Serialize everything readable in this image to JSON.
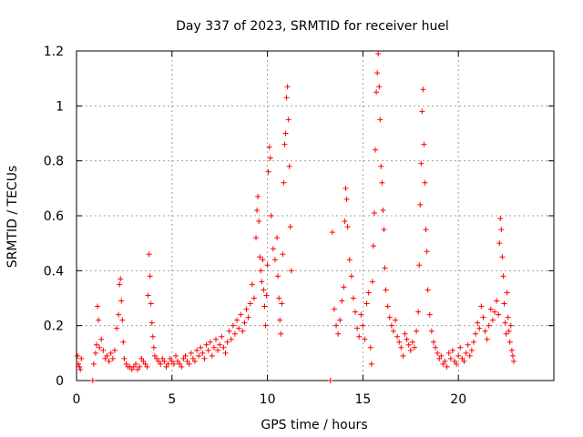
{
  "chart_data": {
    "type": "scatter",
    "title": "Day 337 of 2023, SRMTID for receiver huel",
    "xlabel": "GPS time / hours",
    "ylabel": "SRMTID / TECUs",
    "xlim": [
      0,
      25
    ],
    "ylim": [
      0,
      1.2
    ],
    "x_ticks": [
      0,
      5,
      10,
      15,
      20
    ],
    "x_tick_labels": [
      "0",
      "5",
      "10",
      "15",
      "20"
    ],
    "y_ticks": [
      0,
      0.2,
      0.4,
      0.6,
      0.8,
      1.0,
      1.2
    ],
    "y_tick_labels": [
      "0",
      "0.2",
      "0.4",
      "0.6",
      "0.8",
      "1",
      "1.2"
    ],
    "grid": true,
    "marker": "plus",
    "series_color": "#ff0000",
    "series": [
      {
        "name": "SRMTID",
        "points": [
          [
            0.05,
            0.09
          ],
          [
            0.1,
            0.06
          ],
          [
            0.15,
            0.05
          ],
          [
            0.2,
            0.04
          ],
          [
            0.25,
            0.08
          ],
          [
            0.85,
            0.0
          ],
          [
            0.9,
            0.06
          ],
          [
            1.0,
            0.1
          ],
          [
            1.05,
            0.13
          ],
          [
            1.1,
            0.27
          ],
          [
            1.15,
            0.22
          ],
          [
            1.2,
            0.12
          ],
          [
            1.3,
            0.15
          ],
          [
            1.4,
            0.11
          ],
          [
            1.5,
            0.08
          ],
          [
            1.6,
            0.09
          ],
          [
            1.7,
            0.07
          ],
          [
            1.8,
            0.1
          ],
          [
            1.9,
            0.08
          ],
          [
            2.0,
            0.11
          ],
          [
            2.1,
            0.19
          ],
          [
            2.2,
            0.24
          ],
          [
            2.25,
            0.35
          ],
          [
            2.3,
            0.37
          ],
          [
            2.35,
            0.29
          ],
          [
            2.4,
            0.22
          ],
          [
            2.45,
            0.14
          ],
          [
            2.5,
            0.08
          ],
          [
            2.6,
            0.06
          ],
          [
            2.7,
            0.05
          ],
          [
            2.8,
            0.05
          ],
          [
            2.9,
            0.04
          ],
          [
            3.0,
            0.05
          ],
          [
            3.1,
            0.06
          ],
          [
            3.2,
            0.04
          ],
          [
            3.3,
            0.05
          ],
          [
            3.4,
            0.08
          ],
          [
            3.5,
            0.07
          ],
          [
            3.6,
            0.06
          ],
          [
            3.7,
            0.05
          ],
          [
            3.75,
            0.31
          ],
          [
            3.8,
            0.46
          ],
          [
            3.85,
            0.38
          ],
          [
            3.9,
            0.28
          ],
          [
            3.95,
            0.21
          ],
          [
            4.0,
            0.16
          ],
          [
            4.05,
            0.12
          ],
          [
            4.1,
            0.09
          ],
          [
            4.2,
            0.08
          ],
          [
            4.3,
            0.07
          ],
          [
            4.4,
            0.06
          ],
          [
            4.5,
            0.08
          ],
          [
            4.6,
            0.07
          ],
          [
            4.7,
            0.05
          ],
          [
            4.8,
            0.06
          ],
          [
            4.9,
            0.08
          ],
          [
            5.0,
            0.07
          ],
          [
            5.1,
            0.06
          ],
          [
            5.2,
            0.09
          ],
          [
            5.3,
            0.07
          ],
          [
            5.4,
            0.06
          ],
          [
            5.5,
            0.05
          ],
          [
            5.6,
            0.08
          ],
          [
            5.7,
            0.09
          ],
          [
            5.8,
            0.07
          ],
          [
            5.9,
            0.06
          ],
          [
            6.0,
            0.1
          ],
          [
            6.1,
            0.08
          ],
          [
            6.2,
            0.07
          ],
          [
            6.3,
            0.11
          ],
          [
            6.4,
            0.09
          ],
          [
            6.5,
            0.12
          ],
          [
            6.6,
            0.1
          ],
          [
            6.7,
            0.08
          ],
          [
            6.8,
            0.13
          ],
          [
            6.9,
            0.11
          ],
          [
            7.0,
            0.14
          ],
          [
            7.1,
            0.09
          ],
          [
            7.2,
            0.12
          ],
          [
            7.3,
            0.15
          ],
          [
            7.4,
            0.11
          ],
          [
            7.5,
            0.13
          ],
          [
            7.6,
            0.16
          ],
          [
            7.7,
            0.12
          ],
          [
            7.8,
            0.1
          ],
          [
            7.9,
            0.14
          ],
          [
            8.0,
            0.18
          ],
          [
            8.1,
            0.15
          ],
          [
            8.2,
            0.2
          ],
          [
            8.3,
            0.17
          ],
          [
            8.4,
            0.22
          ],
          [
            8.5,
            0.19
          ],
          [
            8.6,
            0.24
          ],
          [
            8.7,
            0.18
          ],
          [
            8.8,
            0.21
          ],
          [
            8.9,
            0.26
          ],
          [
            9.0,
            0.23
          ],
          [
            9.1,
            0.28
          ],
          [
            9.2,
            0.35
          ],
          [
            9.3,
            0.3
          ],
          [
            9.4,
            0.52
          ],
          [
            9.45,
            0.62
          ],
          [
            9.5,
            0.67
          ],
          [
            9.55,
            0.58
          ],
          [
            9.6,
            0.45
          ],
          [
            9.65,
            0.4
          ],
          [
            9.7,
            0.36
          ],
          [
            9.75,
            0.44
          ],
          [
            9.8,
            0.33
          ],
          [
            9.85,
            0.27
          ],
          [
            9.9,
            0.2
          ],
          [
            9.95,
            0.31
          ],
          [
            10.0,
            0.42
          ],
          [
            10.05,
            0.76
          ],
          [
            10.1,
            0.85
          ],
          [
            10.15,
            0.81
          ],
          [
            10.2,
            0.6
          ],
          [
            10.3,
            0.48
          ],
          [
            10.4,
            0.44
          ],
          [
            10.5,
            0.52
          ],
          [
            10.55,
            0.38
          ],
          [
            10.6,
            0.3
          ],
          [
            10.65,
            0.22
          ],
          [
            10.7,
            0.17
          ],
          [
            10.75,
            0.28
          ],
          [
            10.8,
            0.46
          ],
          [
            10.85,
            0.72
          ],
          [
            10.9,
            0.86
          ],
          [
            10.95,
            0.9
          ],
          [
            11.0,
            1.03
          ],
          [
            11.05,
            1.07
          ],
          [
            11.1,
            0.95
          ],
          [
            11.15,
            0.78
          ],
          [
            11.2,
            0.56
          ],
          [
            11.25,
            0.4
          ],
          [
            13.3,
            0.0
          ],
          [
            13.4,
            0.54
          ],
          [
            13.5,
            0.26
          ],
          [
            13.6,
            0.2
          ],
          [
            13.7,
            0.17
          ],
          [
            13.8,
            0.22
          ],
          [
            13.9,
            0.29
          ],
          [
            14.0,
            0.34
          ],
          [
            14.05,
            0.58
          ],
          [
            14.1,
            0.7
          ],
          [
            14.15,
            0.66
          ],
          [
            14.2,
            0.56
          ],
          [
            14.3,
            0.44
          ],
          [
            14.4,
            0.38
          ],
          [
            14.5,
            0.3
          ],
          [
            14.6,
            0.25
          ],
          [
            14.7,
            0.19
          ],
          [
            14.8,
            0.16
          ],
          [
            14.9,
            0.24
          ],
          [
            15.0,
            0.2
          ],
          [
            15.1,
            0.15
          ],
          [
            15.2,
            0.28
          ],
          [
            15.3,
            0.32
          ],
          [
            15.4,
            0.12
          ],
          [
            15.45,
            0.06
          ],
          [
            15.5,
            0.36
          ],
          [
            15.55,
            0.49
          ],
          [
            15.6,
            0.61
          ],
          [
            15.65,
            0.84
          ],
          [
            15.7,
            1.05
          ],
          [
            15.75,
            1.12
          ],
          [
            15.8,
            1.19
          ],
          [
            15.85,
            1.07
          ],
          [
            15.9,
            0.95
          ],
          [
            15.95,
            0.78
          ],
          [
            16.0,
            0.72
          ],
          [
            16.05,
            0.62
          ],
          [
            16.1,
            0.55
          ],
          [
            16.15,
            0.41
          ],
          [
            16.2,
            0.33
          ],
          [
            16.3,
            0.27
          ],
          [
            16.4,
            0.23
          ],
          [
            16.5,
            0.2
          ],
          [
            16.6,
            0.18
          ],
          [
            16.7,
            0.22
          ],
          [
            16.8,
            0.16
          ],
          [
            16.9,
            0.14
          ],
          [
            17.0,
            0.12
          ],
          [
            17.1,
            0.09
          ],
          [
            17.2,
            0.17
          ],
          [
            17.3,
            0.15
          ],
          [
            17.4,
            0.13
          ],
          [
            17.5,
            0.11
          ],
          [
            17.6,
            0.14
          ],
          [
            17.7,
            0.12
          ],
          [
            17.8,
            0.18
          ],
          [
            17.9,
            0.25
          ],
          [
            17.95,
            0.42
          ],
          [
            18.0,
            0.64
          ],
          [
            18.05,
            0.79
          ],
          [
            18.1,
            0.98
          ],
          [
            18.15,
            1.06
          ],
          [
            18.2,
            0.86
          ],
          [
            18.25,
            0.72
          ],
          [
            18.3,
            0.55
          ],
          [
            18.35,
            0.47
          ],
          [
            18.4,
            0.33
          ],
          [
            18.5,
            0.24
          ],
          [
            18.6,
            0.18
          ],
          [
            18.7,
            0.14
          ],
          [
            18.8,
            0.12
          ],
          [
            18.9,
            0.1
          ],
          [
            19.0,
            0.08
          ],
          [
            19.1,
            0.09
          ],
          [
            19.2,
            0.06
          ],
          [
            19.3,
            0.07
          ],
          [
            19.4,
            0.05
          ],
          [
            19.5,
            0.1
          ],
          [
            19.6,
            0.08
          ],
          [
            19.7,
            0.11
          ],
          [
            19.8,
            0.07
          ],
          [
            19.9,
            0.06
          ],
          [
            20.0,
            0.09
          ],
          [
            20.1,
            0.12
          ],
          [
            20.2,
            0.08
          ],
          [
            20.3,
            0.07
          ],
          [
            20.4,
            0.1
          ],
          [
            20.5,
            0.13
          ],
          [
            20.6,
            0.09
          ],
          [
            20.7,
            0.11
          ],
          [
            20.8,
            0.14
          ],
          [
            20.9,
            0.17
          ],
          [
            21.0,
            0.21
          ],
          [
            21.1,
            0.19
          ],
          [
            21.2,
            0.27
          ],
          [
            21.3,
            0.23
          ],
          [
            21.4,
            0.18
          ],
          [
            21.5,
            0.15
          ],
          [
            21.6,
            0.2
          ],
          [
            21.7,
            0.26
          ],
          [
            21.8,
            0.22
          ],
          [
            21.9,
            0.25
          ],
          [
            22.0,
            0.29
          ],
          [
            22.1,
            0.24
          ],
          [
            22.15,
            0.5
          ],
          [
            22.2,
            0.59
          ],
          [
            22.25,
            0.55
          ],
          [
            22.3,
            0.45
          ],
          [
            22.35,
            0.38
          ],
          [
            22.4,
            0.28
          ],
          [
            22.45,
            0.21
          ],
          [
            22.5,
            0.17
          ],
          [
            22.55,
            0.32
          ],
          [
            22.6,
            0.23
          ],
          [
            22.65,
            0.18
          ],
          [
            22.7,
            0.14
          ],
          [
            22.75,
            0.2
          ],
          [
            22.8,
            0.11
          ],
          [
            22.85,
            0.09
          ],
          [
            22.9,
            0.07
          ]
        ]
      }
    ]
  }
}
